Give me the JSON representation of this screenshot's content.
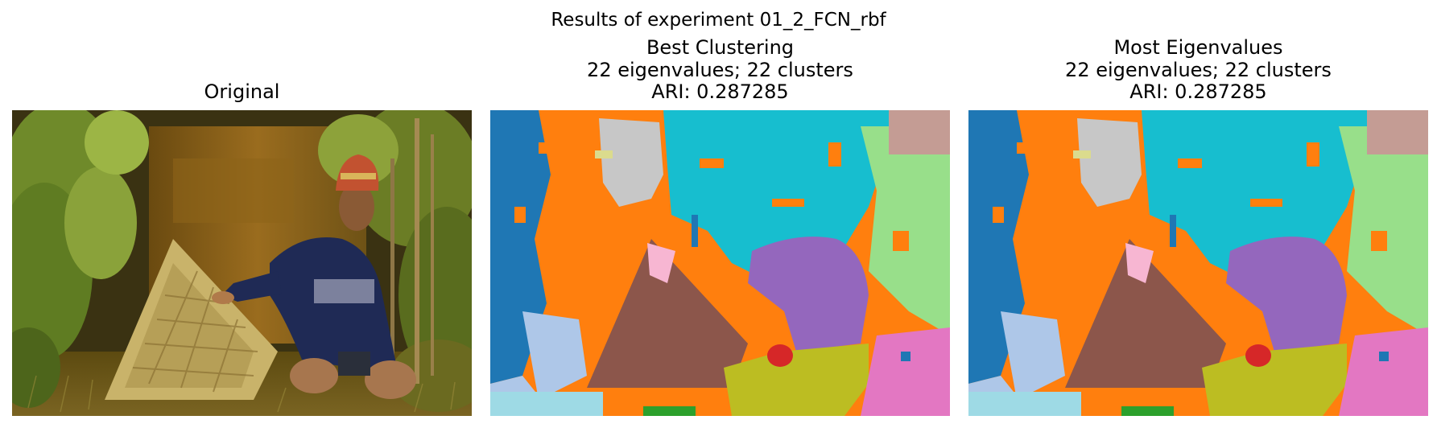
{
  "figure": {
    "suptitle": "Results of experiment 01_2_FCN_rbf"
  },
  "panels": [
    {
      "title_lines": [
        "Original"
      ]
    },
    {
      "title_lines": [
        "Best Clustering",
        "22 eigenvalues; 22 clusters",
        "ARI: 0.287285"
      ]
    },
    {
      "title_lines": [
        "Most Eigenvalues",
        "22 eigenvalues; 22 clusters",
        "ARI: 0.287285"
      ]
    }
  ],
  "palette": {
    "orange": "#ff7f0e",
    "blue": "#1f77b4",
    "light_blue": "#aec7e8",
    "cyan": "#17becf",
    "light_cyan": "#9edae5",
    "light_green": "#98df8a",
    "olive": "#bcbd22",
    "purple": "#9467bd",
    "brown": "#8c564b",
    "pink": "#e377c2",
    "light_pink": "#f7b6d2",
    "gray": "#c7c7c7",
    "dusty_pink": "#c49c94",
    "red": "#d62728",
    "green": "#2ca02c",
    "pale_yellow": "#dbdb8d"
  }
}
